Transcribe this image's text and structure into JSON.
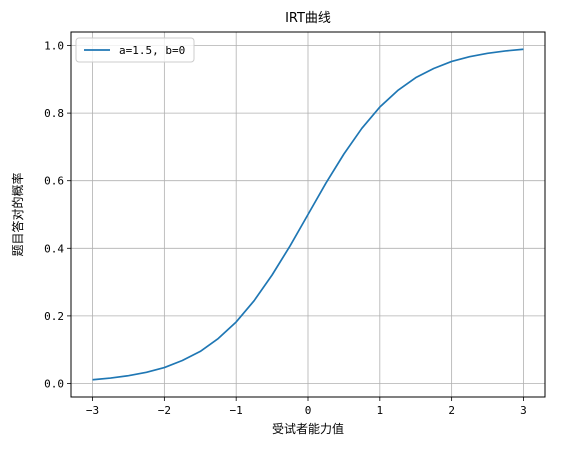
{
  "chart_data": {
    "type": "line",
    "title": "IRT曲线",
    "xlabel": "受试者能力值",
    "ylabel": "题目答对的概率",
    "xlim": [
      -3.3,
      3.3
    ],
    "ylim": [
      -0.04,
      1.04
    ],
    "xticks": [
      -3,
      -2,
      -1,
      0,
      1,
      2,
      3
    ],
    "xtick_labels": [
      "−3",
      "−2",
      "−1",
      "0",
      "1",
      "2",
      "3"
    ],
    "yticks": [
      0.0,
      0.2,
      0.4,
      0.6,
      0.8,
      1.0
    ],
    "ytick_labels": [
      "0.0",
      "0.2",
      "0.4",
      "0.6",
      "0.8",
      "1.0"
    ],
    "grid": true,
    "legend": "top-left",
    "series": [
      {
        "name": "a=1.5, b=0",
        "color": "#1f77b4",
        "x": [
          -3.0,
          -2.75,
          -2.5,
          -2.25,
          -2.0,
          -1.75,
          -1.5,
          -1.25,
          -1.0,
          -0.75,
          -0.5,
          -0.25,
          0.0,
          0.25,
          0.5,
          0.75,
          1.0,
          1.25,
          1.5,
          1.75,
          2.0,
          2.25,
          2.5,
          2.75,
          3.0
        ],
        "y": [
          0.011,
          0.016,
          0.023,
          0.033,
          0.047,
          0.068,
          0.095,
          0.133,
          0.182,
          0.245,
          0.321,
          0.407,
          0.5,
          0.593,
          0.679,
          0.755,
          0.818,
          0.867,
          0.905,
          0.932,
          0.953,
          0.967,
          0.977,
          0.984,
          0.989
        ]
      }
    ]
  }
}
